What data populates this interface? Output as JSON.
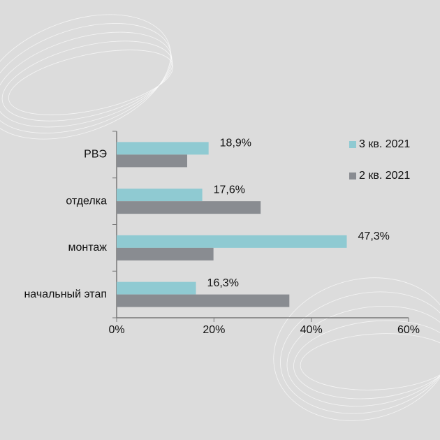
{
  "chart_data": {
    "type": "barh",
    "categories": [
      "РВЭ",
      "отделка",
      "монтаж",
      "начальный этап"
    ],
    "series": [
      {
        "name": "3 кв. 2021",
        "color": "#8fcad2",
        "values": [
          18.9,
          17.6,
          47.3,
          16.3
        ],
        "value_labels": [
          "18,9%",
          "17,6%",
          "47,3%",
          "16,3%"
        ]
      },
      {
        "name": "2 кв. 2021",
        "color": "#898c91",
        "values": [
          14.5,
          29.6,
          19.9,
          35.5
        ]
      }
    ],
    "xlim": [
      0,
      60
    ],
    "xticks": [
      {
        "value": 0,
        "label": "0%"
      },
      {
        "value": 20,
        "label": "20%"
      },
      {
        "value": 40,
        "label": "40%"
      },
      {
        "value": 60,
        "label": "60%"
      }
    ],
    "legend": "right"
  }
}
